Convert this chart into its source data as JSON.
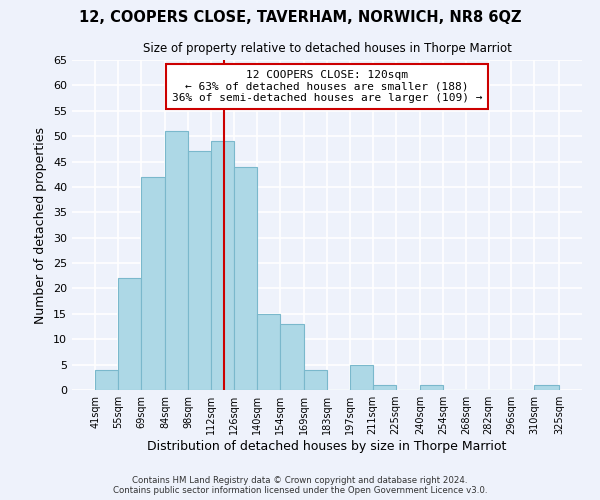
{
  "title": "12, COOPERS CLOSE, TAVERHAM, NORWICH, NR8 6QZ",
  "subtitle": "Size of property relative to detached houses in Thorpe Marriot",
  "xlabel": "Distribution of detached houses by size in Thorpe Marriot",
  "ylabel": "Number of detached properties",
  "bar_color": "#add8e6",
  "bar_edge_color": "#7ab8cc",
  "bins": [
    41,
    55,
    69,
    84,
    98,
    112,
    126,
    140,
    154,
    169,
    183,
    197,
    211,
    225,
    240,
    254,
    268,
    282,
    296,
    310,
    325
  ],
  "counts": [
    4,
    22,
    42,
    51,
    47,
    49,
    44,
    15,
    13,
    4,
    0,
    5,
    1,
    0,
    1,
    0,
    0,
    0,
    0,
    1
  ],
  "bin_labels": [
    "41sqm",
    "55sqm",
    "69sqm",
    "84sqm",
    "98sqm",
    "112sqm",
    "126sqm",
    "140sqm",
    "154sqm",
    "169sqm",
    "183sqm",
    "197sqm",
    "211sqm",
    "225sqm",
    "240sqm",
    "254sqm",
    "268sqm",
    "282sqm",
    "296sqm",
    "310sqm",
    "325sqm"
  ],
  "property_size": 120,
  "vline_color": "#cc0000",
  "ylim": [
    0,
    65
  ],
  "yticks": [
    0,
    5,
    10,
    15,
    20,
    25,
    30,
    35,
    40,
    45,
    50,
    55,
    60,
    65
  ],
  "annotation_line1": "12 COOPERS CLOSE: 120sqm",
  "annotation_line2": "← 63% of detached houses are smaller (188)",
  "annotation_line3": "36% of semi-detached houses are larger (109) →",
  "annotation_box_color": "#ffffff",
  "annotation_box_edge": "#cc0000",
  "footer_line1": "Contains HM Land Registry data © Crown copyright and database right 2024.",
  "footer_line2": "Contains public sector information licensed under the Open Government Licence v3.0.",
  "background_color": "#eef2fb",
  "grid_color": "#ffffff"
}
